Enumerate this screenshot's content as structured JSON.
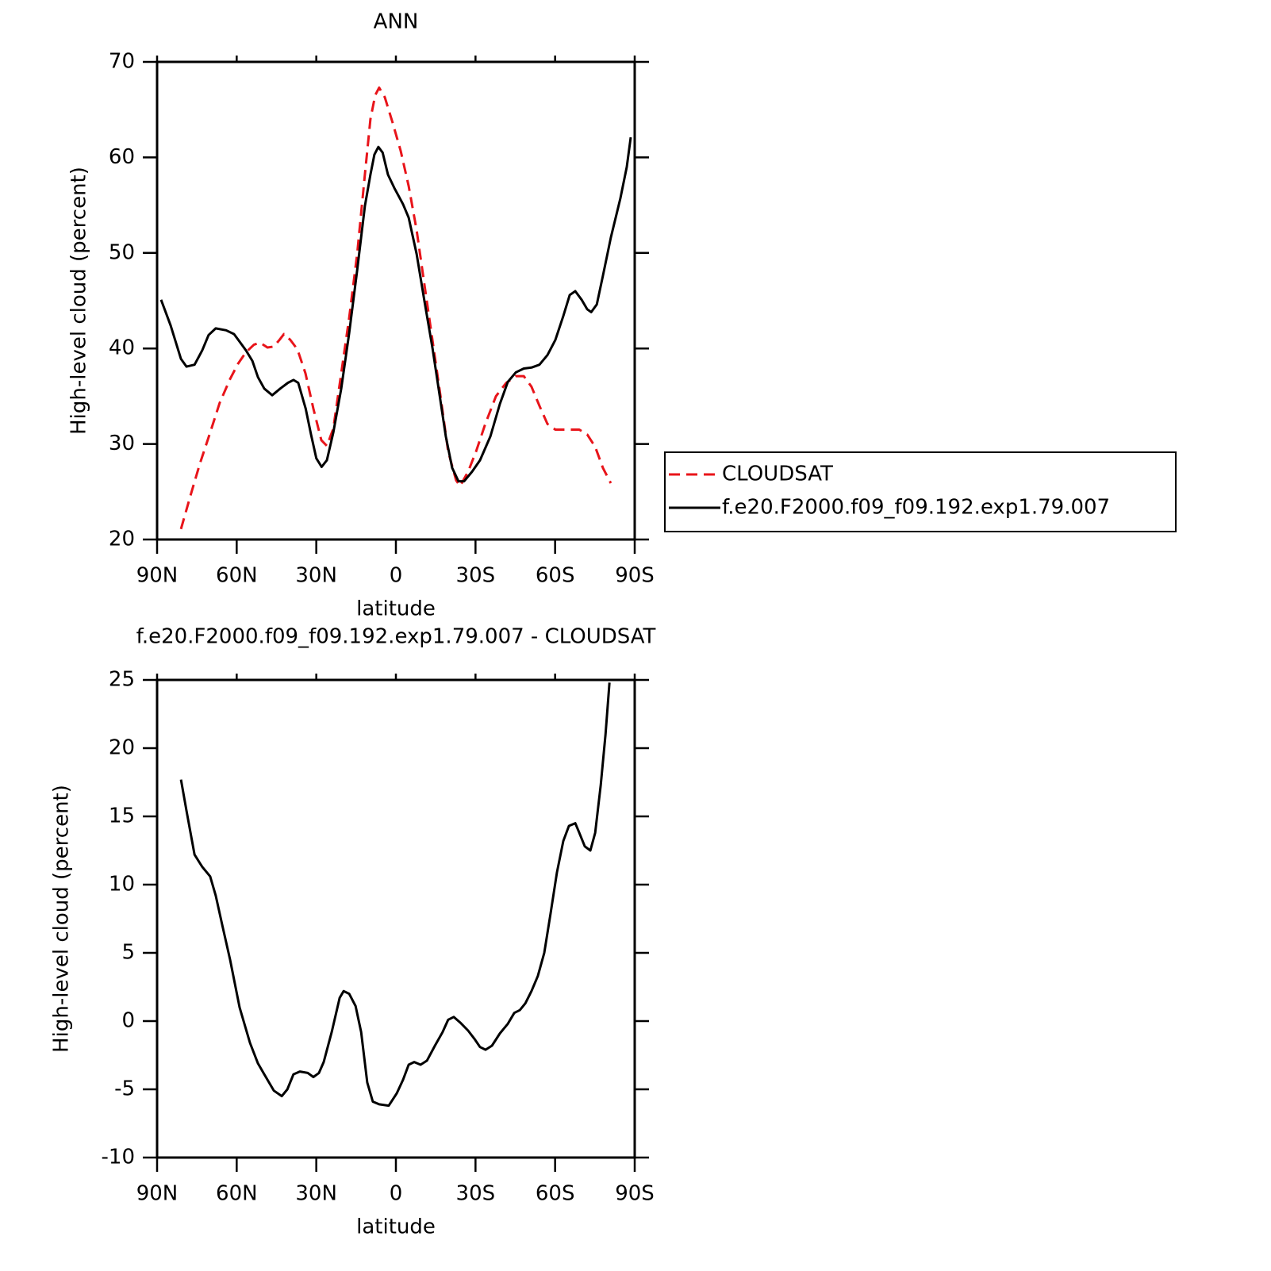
{
  "chart_data": [
    {
      "type": "line",
      "title": "ANN",
      "xlabel": "latitude",
      "ylabel": "High-level cloud (percent)",
      "xlim": [
        90,
        -90
      ],
      "xticks": [
        {
          "value": 90,
          "label": "90N"
        },
        {
          "value": 60,
          "label": "60N"
        },
        {
          "value": 30,
          "label": "30N"
        },
        0,
        {
          "value": -30,
          "label": "30S"
        },
        {
          "value": -60,
          "label": "60S"
        },
        {
          "value": -90,
          "label": "90S"
        }
      ],
      "ylim": [
        20,
        70
      ],
      "yticks": [
        20,
        30,
        40,
        50,
        60,
        70
      ],
      "legend": "right",
      "series": [
        {
          "name": "CLOUDSAT",
          "color": "#e8141a",
          "dashed": true,
          "x": [
            81,
            77.4,
            73.9,
            70,
            66.4,
            62.5,
            59.5,
            56.5,
            53.5,
            51.1,
            48.4,
            46,
            43.9,
            42.2,
            39.8,
            37.1,
            34.1,
            31.1,
            28.1,
            26,
            23.6,
            20.6,
            17.6,
            14.6,
            11.7,
            9.6,
            7.8,
            6.3,
            4.2,
            1.2,
            -1.8,
            -4.8,
            -7.8,
            -10.8,
            -13.8,
            -16.8,
            -19.7,
            -22.7,
            -24.2,
            -27.2,
            -30.2,
            -33.7,
            -37.7,
            -41.6,
            -45.2,
            -48.2,
            -51.1,
            -54.1,
            -57.1,
            -60.1,
            -64.6,
            -69.1,
            -72.1,
            -75.1,
            -78,
            -81
          ],
          "values": [
            21.1,
            24.6,
            27.9,
            31.2,
            34.3,
            36.8,
            38.4,
            39.6,
            40.4,
            40.6,
            40.1,
            40.2,
            40.9,
            41.5,
            40.9,
            39.9,
            37.4,
            33.7,
            30.4,
            29.8,
            31.6,
            37.4,
            43.2,
            49.9,
            58.2,
            64,
            66.5,
            67.3,
            66.3,
            63.6,
            60.7,
            57,
            52.4,
            46.6,
            40.8,
            35,
            29.2,
            26.2,
            25.6,
            27.1,
            29.2,
            32.1,
            35,
            36.4,
            37.1,
            37.1,
            36,
            34,
            32.1,
            31.5,
            31.5,
            31.5,
            31,
            29.7,
            27.5,
            25.9
          ]
        },
        {
          "name": "f.e20.F2000.f09_f09.192.exp1.79.007",
          "color": "#000000",
          "dashed": false,
          "x": [
            88.5,
            84.9,
            81,
            78.9,
            75.9,
            73,
            70.6,
            67.9,
            64,
            61,
            58.6,
            56.5,
            54.1,
            52,
            49.6,
            46.6,
            43.6,
            40.7,
            38.6,
            36.8,
            34,
            32,
            30,
            28,
            26,
            23.6,
            20.6,
            17.6,
            14.6,
            11.7,
            9.6,
            8.1,
            6.6,
            5,
            3,
            0.6,
            -2.7,
            -4.8,
            -7.8,
            -10.8,
            -13.8,
            -16.8,
            -18.8,
            -21.2,
            -23.6,
            -25.7,
            -28.7,
            -31.7,
            -35.6,
            -39.2,
            -42.2,
            -45.2,
            -48.2,
            -51.1,
            -54.1,
            -57.1,
            -60.1,
            -63.1,
            -65.5,
            -67.6,
            -70,
            -72.1,
            -73.6,
            -75.7,
            -78,
            -81,
            -84.6,
            -87,
            -88.5
          ],
          "values": [
            45.1,
            42.4,
            38.9,
            38.1,
            38.3,
            39.8,
            41.4,
            42.1,
            41.9,
            41.5,
            40.6,
            39.8,
            38.7,
            37,
            35.8,
            35.1,
            35.8,
            36.4,
            36.7,
            36.4,
            33.7,
            31,
            28.5,
            27.6,
            28.3,
            31.2,
            35.8,
            41.6,
            48.2,
            54.9,
            58.2,
            60.3,
            61.1,
            60.5,
            58.2,
            56.8,
            55.1,
            53.7,
            49.9,
            44.9,
            40,
            34.5,
            30.8,
            27.5,
            26.1,
            26.1,
            27.1,
            28.3,
            30.8,
            34.2,
            36.5,
            37.5,
            37.9,
            38,
            38.3,
            39.3,
            40.9,
            43.4,
            45.6,
            46,
            45.1,
            44.1,
            43.8,
            44.6,
            47.6,
            51.6,
            55.7,
            59,
            62.1
          ]
        }
      ]
    },
    {
      "type": "line",
      "title": "f.e20.F2000.f09_f09.192.exp1.79.007 - CLOUDSAT",
      "xlabel": "latitude",
      "ylabel": "High-level cloud (percent)",
      "xlim": [
        90,
        -90
      ],
      "xticks": [
        {
          "value": 90,
          "label": "90N"
        },
        {
          "value": 60,
          "label": "60N"
        },
        {
          "value": 30,
          "label": "30N"
        },
        0,
        {
          "value": -30,
          "label": "30S"
        },
        {
          "value": -60,
          "label": "60S"
        },
        {
          "value": -90,
          "label": "90S"
        }
      ],
      "ylim": [
        -10,
        25
      ],
      "yticks": [
        -10,
        -5,
        0,
        5,
        10,
        15,
        20,
        25
      ],
      "color": "#000000",
      "x": [
        81,
        78.9,
        75.9,
        73,
        70,
        67.9,
        65.5,
        62.5,
        58.9,
        55,
        52,
        49.6,
        46,
        43,
        40.9,
        38.6,
        36.2,
        33.2,
        31.1,
        29,
        27.2,
        24.2,
        21.2,
        19.7,
        17.6,
        15.2,
        13.1,
        10.8,
        8.7,
        6.3,
        2.7,
        -0.3,
        -2.7,
        -4.8,
        -6.9,
        -9.3,
        -11.7,
        -14.7,
        -17.6,
        -19.7,
        -21.8,
        -24.2,
        -27.2,
        -29.6,
        -31.7,
        -33.8,
        -36.2,
        -39.2,
        -42.2,
        -44.6,
        -46.7,
        -48.8,
        -51.1,
        -53.5,
        -55.9,
        -58.3,
        -60.7,
        -63.1,
        -65.2,
        -67.6,
        -69.1,
        -71.2,
        -73.3,
        -75.1,
        -77.2,
        -79,
        -80.5
      ],
      "values": [
        17.7,
        15.4,
        12.2,
        11.3,
        10.6,
        9.2,
        7.1,
        4.5,
        1,
        -1.6,
        -3.1,
        -3.9,
        -5.1,
        -5.5,
        -5,
        -3.9,
        -3.7,
        -3.8,
        -4.1,
        -3.8,
        -3,
        -0.8,
        1.7,
        2.2,
        2,
        1.1,
        -0.8,
        -4.5,
        -5.9,
        -6.1,
        -6.2,
        -5.3,
        -4.3,
        -3.2,
        -3,
        -3.2,
        -2.9,
        -1.8,
        -0.8,
        0.1,
        0.3,
        -0.1,
        -0.7,
        -1.3,
        -1.9,
        -2.1,
        -1.8,
        -0.9,
        -0.2,
        0.6,
        0.8,
        1.3,
        2.2,
        3.3,
        5,
        7.9,
        10.9,
        13.2,
        14.3,
        14.5,
        13.8,
        12.8,
        12.5,
        13.8,
        17.3,
        21,
        24.8
      ]
    }
  ]
}
